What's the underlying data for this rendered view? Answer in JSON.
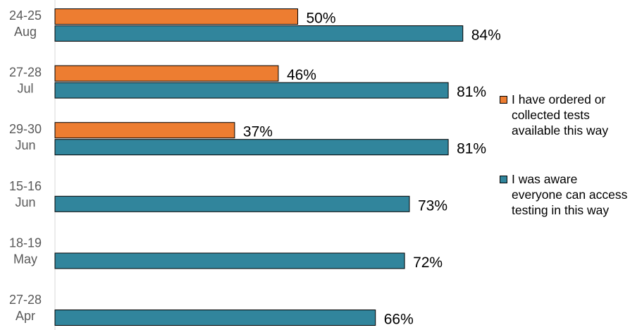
{
  "chart_data": {
    "type": "bar",
    "orientation": "horizontal",
    "categories": [
      [
        "24-25",
        "Aug"
      ],
      [
        "27-28",
        "Jul"
      ],
      [
        "29-30",
        "Jun"
      ],
      [
        "15-16",
        "Jun"
      ],
      [
        "18-19",
        "May"
      ],
      [
        "27-28",
        "Apr"
      ]
    ],
    "series": [
      {
        "name": "I have ordered or collected tests available this way",
        "color": "#ED7D31",
        "values": [
          50,
          46,
          37,
          null,
          null,
          null
        ],
        "labels": [
          "50%",
          "46%",
          "37%",
          "",
          "",
          ""
        ]
      },
      {
        "name": "I was aware everyone can access testing in this way",
        "color": "#31859C",
        "values": [
          84,
          81,
          81,
          73,
          72,
          66
        ],
        "labels": [
          "84%",
          "81%",
          "81%",
          "73%",
          "72%",
          "66%"
        ]
      }
    ],
    "xlim": [
      0,
      100
    ],
    "grid": false,
    "legend_position": "right"
  },
  "legend": [
    {
      "label": "I have ordered or collected tests available this way",
      "color": "#ED7D31",
      "icon": "orange-square-swatch"
    },
    {
      "label": "I was aware everyone can access testing in this way",
      "color": "#31859C",
      "icon": "teal-square-swatch"
    }
  ]
}
